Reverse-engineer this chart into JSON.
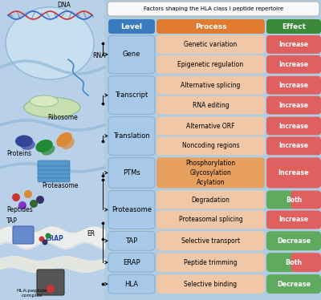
{
  "title": "Factors shaping the HLA class I peptide repertoire",
  "header": [
    "Level",
    "Process",
    "Effect"
  ],
  "header_colors": [
    "#3a7bbf",
    "#e07b30",
    "#3a8a3a"
  ],
  "rows": [
    {
      "level": "Gene",
      "processes": [
        "Genetic variation",
        "Epigenetic regulation"
      ],
      "effects": [
        "Increase",
        "Increase"
      ],
      "effect_types": [
        "increase",
        "increase"
      ],
      "span": 2
    },
    {
      "level": "Transcript",
      "processes": [
        "Alternative splicing",
        "RNA editing"
      ],
      "effects": [
        "Increase",
        "Increase"
      ],
      "effect_types": [
        "increase",
        "increase"
      ],
      "span": 2
    },
    {
      "level": "Translation",
      "processes": [
        "Alternative ORF",
        "Noncoding regions"
      ],
      "effects": [
        "Increase",
        "Increase"
      ],
      "effect_types": [
        "increase",
        "increase"
      ],
      "span": 2
    },
    {
      "level": "PTMs",
      "processes": [
        "Phosphorylation\nGlycosylation\nAcylation"
      ],
      "effects": [
        "Increase"
      ],
      "effect_types": [
        "increase"
      ],
      "span": 1
    },
    {
      "level": "Proteasome",
      "processes": [
        "Degradation",
        "Proteasomal splicing"
      ],
      "effects": [
        "Both",
        "Increase"
      ],
      "effect_types": [
        "both",
        "increase"
      ],
      "span": 2
    },
    {
      "level": "TAP",
      "processes": [
        "Selective transport"
      ],
      "effects": [
        "Decrease"
      ],
      "effect_types": [
        "decrease"
      ],
      "span": 1
    },
    {
      "level": "ERAP",
      "processes": [
        "Peptide trimming"
      ],
      "effects": [
        "Both"
      ],
      "effect_types": [
        "both"
      ],
      "span": 1
    },
    {
      "level": "HLA",
      "processes": [
        "Selective binding"
      ],
      "effects": [
        "Decrease"
      ],
      "effect_types": [
        "decrease"
      ],
      "span": 1
    }
  ],
  "left_panel_color": "#b8d0e8",
  "level_box_color": "#a8c8e8",
  "level_box_edge": "#80aad0",
  "process_box_color_ptms": "#e8a060",
  "process_box_color_normal": "#f0c8a8",
  "increase_color": "#e06060",
  "decrease_color": "#60aa60",
  "title_box_color": "#f8f8f8",
  "title_box_edge": "#aaaaaa",
  "bg_color": "#b0cce0"
}
